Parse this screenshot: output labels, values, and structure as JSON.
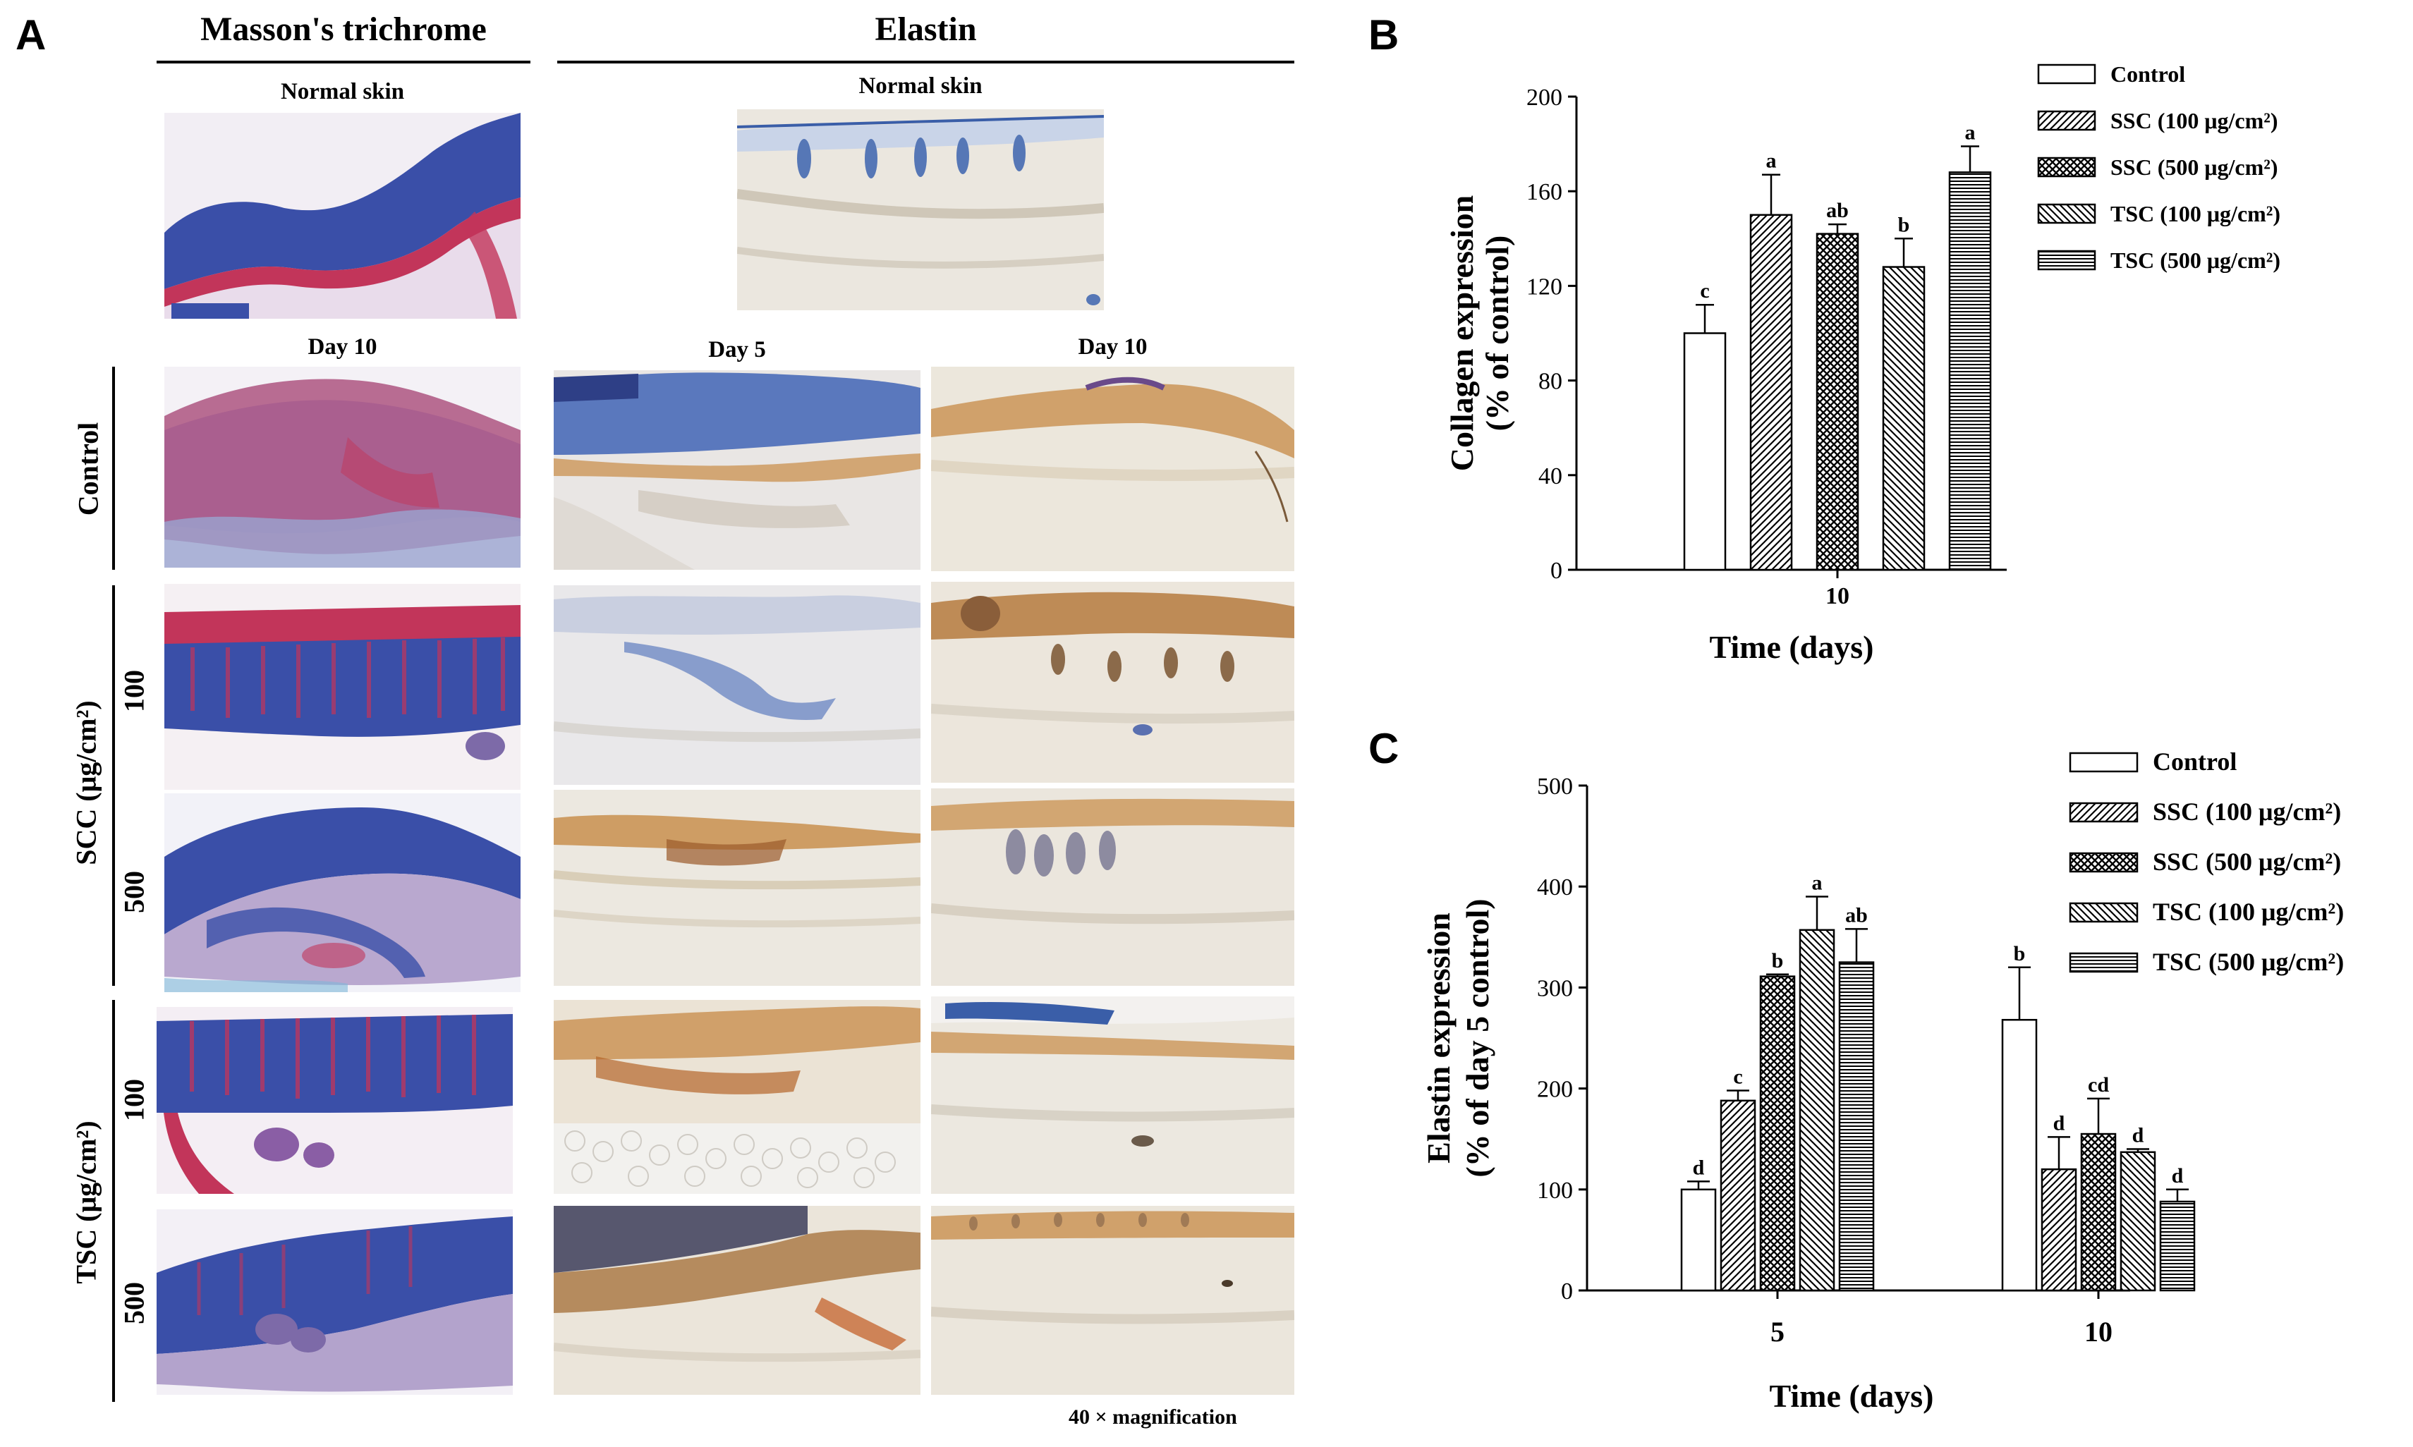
{
  "panel_a": {
    "letter": "A",
    "header_masson": "Masson's trichrome",
    "header_elastin": "Elastin",
    "normal_skin_masson": "Normal skin",
    "normal_skin_elastin": "Normal skin",
    "day10_masson": "Day 10",
    "day5_elastin": "Day 5",
    "day10_elastin": "Day 10",
    "row_control": "Control",
    "group_ssc": "SCC (μg/cm²)",
    "group_tsc": "TSC (μg/cm²)",
    "dose_100_a": "100",
    "dose_500_a": "500",
    "dose_100_b": "100",
    "dose_500_b": "500",
    "magnification": "40 × magnification"
  },
  "panel_b": {
    "letter": "B"
  },
  "panel_c": {
    "letter": "C"
  },
  "colors": {
    "masson_blue": "#3a4fa8",
    "masson_red": "#c2355a",
    "elastin_brown": "#c78a45",
    "elastin_bg": "#ebe7df"
  },
  "chart_data": [
    {
      "id": "B",
      "type": "bar",
      "categories": [
        "10"
      ],
      "xlabel": "Time (days)",
      "ylabel": [
        "Collagen expression",
        "(% of control)"
      ],
      "ylim": [
        0,
        200
      ],
      "yticks": [
        "0",
        "40",
        "80",
        "120",
        "160",
        "200"
      ],
      "legend_position": "top-right",
      "series": [
        {
          "name": "Control",
          "pattern": "none",
          "values": [
            100
          ],
          "errors": [
            12
          ],
          "letters": [
            "c"
          ]
        },
        {
          "name": "SSC (100 μg/cm²)",
          "pattern": "diag",
          "values": [
            150
          ],
          "errors": [
            17
          ],
          "letters": [
            "a"
          ]
        },
        {
          "name": "SSC (500 μg/cm²)",
          "pattern": "cross",
          "values": [
            142
          ],
          "errors": [
            4
          ],
          "letters": [
            "ab"
          ]
        },
        {
          "name": "TSC (100 μg/cm²)",
          "pattern": "back",
          "values": [
            128
          ],
          "errors": [
            12
          ],
          "letters": [
            "b"
          ]
        },
        {
          "name": "TSC (500 μg/cm²)",
          "pattern": "horiz",
          "values": [
            168
          ],
          "errors": [
            11
          ],
          "letters": [
            "a"
          ]
        }
      ]
    },
    {
      "id": "C",
      "type": "bar",
      "categories": [
        "5",
        "10"
      ],
      "xlabel": "Time (days)",
      "ylabel": [
        "Elastin expression",
        "(% of day 5 control)"
      ],
      "ylim": [
        0,
        500
      ],
      "yticks": [
        "0",
        "100",
        "200",
        "300",
        "400",
        "500"
      ],
      "legend_position": "top-right",
      "series": [
        {
          "name": "Control",
          "pattern": "none",
          "values": [
            100,
            268
          ],
          "errors": [
            8,
            52
          ],
          "letters": [
            "d",
            "b"
          ]
        },
        {
          "name": "SSC (100 μg/cm²)",
          "pattern": "diag",
          "values": [
            188,
            120
          ],
          "errors": [
            10,
            32
          ],
          "letters": [
            "c",
            "d"
          ]
        },
        {
          "name": "SSC (500 μg/cm²)",
          "pattern": "cross",
          "values": [
            311,
            155
          ],
          "errors": [
            2,
            35
          ],
          "letters": [
            "b",
            "cd"
          ]
        },
        {
          "name": "TSC (100 μg/cm²)",
          "pattern": "back",
          "values": [
            357,
            137
          ],
          "errors": [
            33,
            3
          ],
          "letters": [
            "a",
            "d"
          ]
        },
        {
          "name": "TSC (500 μg/cm²)",
          "pattern": "horiz",
          "values": [
            325,
            88
          ],
          "errors": [
            33,
            12
          ],
          "letters": [
            "ab",
            "d"
          ]
        }
      ]
    }
  ]
}
